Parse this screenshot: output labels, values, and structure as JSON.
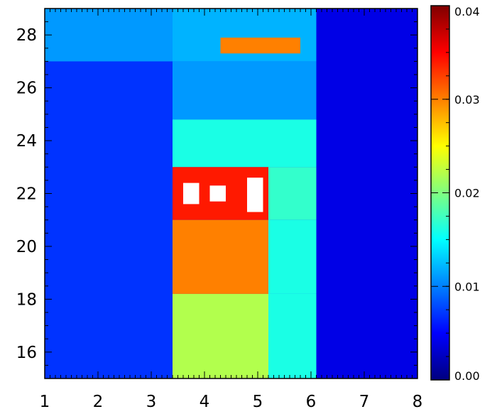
{
  "chart_data": {
    "type": "heatmap",
    "title": "",
    "xlabel": "",
    "ylabel": "",
    "xlim": [
      1,
      8
    ],
    "ylim": [
      15,
      29
    ],
    "x_ticks": [
      1,
      2,
      3,
      4,
      5,
      6,
      7,
      8
    ],
    "y_ticks": [
      16,
      18,
      20,
      22,
      24,
      26,
      28
    ],
    "x_tick_labels": [
      "1",
      "2",
      "3",
      "4",
      "5",
      "6",
      "7",
      "8"
    ],
    "y_tick_labels": [
      "16",
      "18",
      "20",
      "22",
      "24",
      "26",
      "28"
    ],
    "colorbar": {
      "min": 0.0,
      "max": 0.04,
      "ticks": [
        0.0,
        0.01,
        0.02,
        0.03,
        0.04
      ],
      "tick_labels": [
        "0.00",
        "0.01",
        "0.02",
        "0.03",
        "0.04"
      ],
      "colormap": "jet"
    },
    "grid": false,
    "regions": [
      {
        "x": [
          1.0,
          8.0
        ],
        "y": [
          15.0,
          29.0
        ],
        "value": 0.007
      },
      {
        "x": [
          1.0,
          3.4
        ],
        "y": [
          27.0,
          29.0
        ],
        "value": 0.011
      },
      {
        "x": [
          3.4,
          6.1
        ],
        "y": [
          27.0,
          29.0
        ],
        "value": 0.012
      },
      {
        "x": [
          3.4,
          6.1
        ],
        "y": [
          24.8,
          27.0
        ],
        "value": 0.011
      },
      {
        "x": [
          3.4,
          6.1
        ],
        "y": [
          23.0,
          24.8
        ],
        "value": 0.016
      },
      {
        "x": [
          3.4,
          5.2
        ],
        "y": [
          21.0,
          23.0
        ],
        "value": 0.034
      },
      {
        "x": [
          5.2,
          6.1
        ],
        "y": [
          21.0,
          23.0
        ],
        "value": 0.017
      },
      {
        "x": [
          3.4,
          5.2
        ],
        "y": [
          18.2,
          21.0
        ],
        "value": 0.03
      },
      {
        "x": [
          5.2,
          6.1
        ],
        "y": [
          18.2,
          21.0
        ],
        "value": 0.016
      },
      {
        "x": [
          3.4,
          5.2
        ],
        "y": [
          15.0,
          18.2
        ],
        "value": 0.022
      },
      {
        "x": [
          5.2,
          6.1
        ],
        "y": [
          15.0,
          18.2
        ],
        "value": 0.016
      },
      {
        "x": [
          6.1,
          8.0
        ],
        "y": [
          15.0,
          29.0
        ],
        "value": 0.004
      },
      {
        "x": [
          4.3,
          5.8
        ],
        "y": [
          27.3,
          27.9
        ],
        "value": 0.03
      },
      {
        "x": [
          3.6,
          3.9
        ],
        "y": [
          21.6,
          22.4
        ],
        "value": 0.045
      },
      {
        "x": [
          4.1,
          4.4
        ],
        "y": [
          21.7,
          22.3
        ],
        "value": 0.045
      },
      {
        "x": [
          4.8,
          5.1
        ],
        "y": [
          21.3,
          22.6
        ],
        "value": 0.045
      }
    ]
  }
}
